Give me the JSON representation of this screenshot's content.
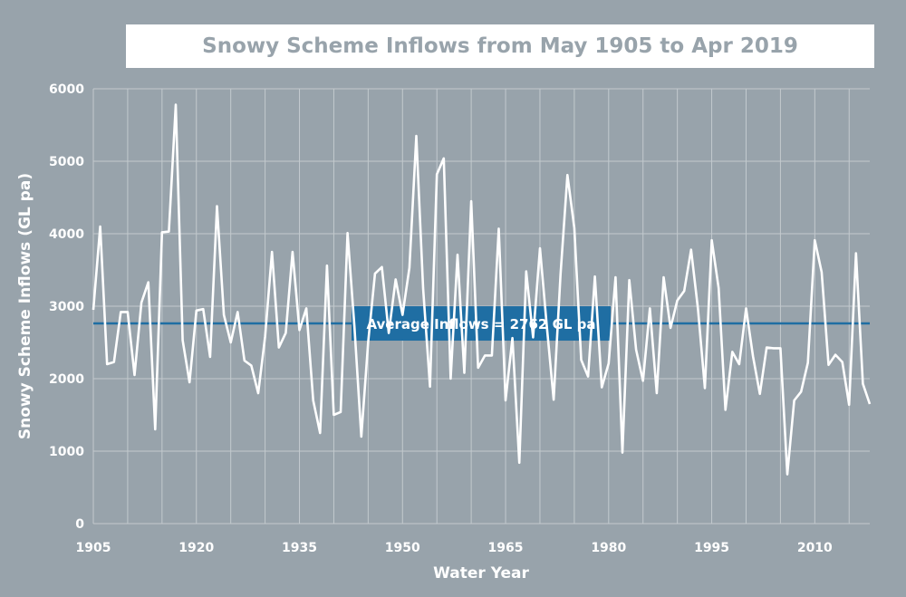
{
  "chart_data": {
    "type": "line",
    "title": "Snowy Scheme Inflows from May 1905 to Apr 2019",
    "xlabel": "Water Year",
    "ylabel": "Snowy Scheme Inflows (GL pa)",
    "xlim": [
      1905,
      2018
    ],
    "ylim": [
      0,
      6000
    ],
    "x_ticks": [
      1905,
      1920,
      1935,
      1950,
      1965,
      1980,
      1995,
      2010
    ],
    "y_ticks": [
      0,
      1000,
      2000,
      3000,
      4000,
      5000,
      6000
    ],
    "grid": true,
    "average": {
      "value": 2762,
      "label": "Average Inflows = 2762 GL pa"
    },
    "series": [
      {
        "x": [
          1905,
          1906,
          1907,
          1908,
          1909,
          1910,
          1911,
          1912,
          1913,
          1914,
          1915,
          1916,
          1917,
          1918,
          1919,
          1920,
          1921,
          1922,
          1923,
          1924,
          1925,
          1926,
          1927,
          1928,
          1929,
          1930,
          1931,
          1932,
          1933,
          1934,
          1935,
          1936,
          1937,
          1938,
          1939,
          1940,
          1941,
          1942,
          1943,
          1944,
          1945,
          1946,
          1947,
          1948,
          1949,
          1950,
          1951,
          1952,
          1953,
          1954,
          1955,
          1956,
          1957,
          1958,
          1959,
          1960,
          1961,
          1962,
          1963,
          1964,
          1965,
          1966,
          1967,
          1968,
          1969,
          1970,
          1971,
          1972,
          1973,
          1974,
          1975,
          1976,
          1977,
          1978,
          1979,
          1980,
          1981,
          1982,
          1983,
          1984,
          1985,
          1986,
          1987,
          1988,
          1989,
          1990,
          1991,
          1992,
          1993,
          1994,
          1995,
          1996,
          1997,
          1998,
          1999,
          2000,
          2001,
          2002,
          2003,
          2004,
          2005,
          2006,
          2007,
          2008,
          2009,
          2010,
          2011,
          2012,
          2013,
          2014,
          2015,
          2016,
          2017,
          2018
        ],
        "values": [
          2950,
          4100,
          2200,
          2230,
          2920,
          2920,
          2050,
          3050,
          3330,
          1300,
          4020,
          4030,
          5780,
          2530,
          1950,
          2940,
          2960,
          2300,
          4380,
          2880,
          2500,
          2920,
          2250,
          2180,
          1800,
          2580,
          3750,
          2430,
          2630,
          3750,
          2670,
          2970,
          1700,
          1250,
          3560,
          1500,
          1540,
          4010,
          2720,
          1200,
          2510,
          3450,
          3540,
          2630,
          3370,
          2880,
          3530,
          5350,
          3250,
          1890,
          4820,
          5040,
          2000,
          3710,
          2080,
          4450,
          2150,
          2320,
          2320,
          4070,
          1700,
          2560,
          840,
          3480,
          2570,
          3800,
          2730,
          1710,
          3440,
          4810,
          4080,
          2260,
          2030,
          3410,
          1880,
          2210,
          3400,
          980,
          3360,
          2400,
          1970,
          2970,
          1800,
          3400,
          2700,
          3080,
          3210,
          3780,
          2960,
          1870,
          3910,
          3250,
          1570,
          2370,
          2200,
          2970,
          2310,
          1790,
          2430,
          2420,
          2420,
          680,
          1700,
          1820,
          2220,
          3910,
          3470,
          2190,
          2330,
          2230,
          1640,
          3730,
          1930,
          1650
        ]
      }
    ],
    "colors": {
      "background": "#98a3ab",
      "line": "#ffffff",
      "average_line": "#1f6ea3",
      "average_box": "#1f6ea3",
      "title": "#98a3ab"
    }
  }
}
